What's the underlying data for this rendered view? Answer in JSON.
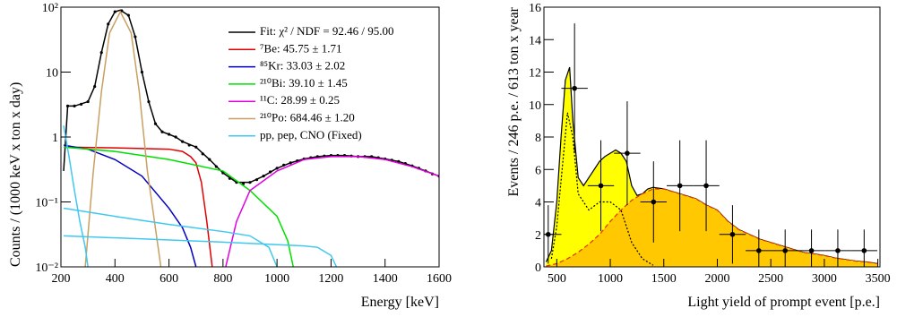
{
  "chart_data": [
    {
      "type": "line",
      "xlabel": "Energy [keV]",
      "ylabel": "Counts / (1000 keV x ton x day)",
      "xlim": [
        200,
        1600
      ],
      "ylim": [
        0.01,
        100
      ],
      "log_y": true,
      "xticks": [
        200,
        400,
        600,
        800,
        1000,
        1200,
        1400,
        1600
      ],
      "yticks": [
        {
          "value": 0.01,
          "label": "10⁻²"
        },
        {
          "value": 0.1,
          "label": "10⁻¹"
        },
        1,
        10,
        {
          "value": 100,
          "label": "10²"
        }
      ],
      "series": [
        {
          "name": "Fit: χ² / NDF = 92.46 / 95.00",
          "color": "#000000",
          "x": [
            210,
            225,
            250,
            300,
            325,
            350,
            375,
            400,
            420,
            450,
            475,
            500,
            525,
            550,
            575,
            600,
            625,
            650,
            700,
            750,
            800,
            850,
            900,
            950,
            1000,
            1050,
            1100,
            1150,
            1200,
            1250,
            1300,
            1350,
            1400,
            1450,
            1500,
            1550,
            1600
          ],
          "values": [
            0.3,
            3,
            3.0,
            3.5,
            6,
            20,
            55,
            85,
            90,
            75,
            35,
            10,
            3.5,
            1.6,
            1.2,
            1.1,
            1.0,
            0.85,
            0.7,
            0.45,
            0.28,
            0.2,
            0.2,
            0.25,
            0.33,
            0.4,
            0.46,
            0.5,
            0.52,
            0.52,
            0.5,
            0.5,
            0.46,
            0.42,
            0.36,
            0.3,
            0.25
          ]
        },
        {
          "name": "⁷Be: 45.75 ± 1.71",
          "color": "#e00000",
          "x": [
            210,
            400,
            600,
            650,
            680,
            700,
            720,
            740,
            760
          ],
          "values": [
            0.7,
            0.68,
            0.65,
            0.6,
            0.5,
            0.4,
            0.2,
            0.05,
            0.01
          ]
        },
        {
          "name": "⁸⁵Kr: 33.03 ± 2.02",
          "color": "#0000c0",
          "x": [
            210,
            300,
            400,
            500,
            600,
            650,
            680,
            700
          ],
          "values": [
            0.75,
            0.65,
            0.45,
            0.25,
            0.08,
            0.04,
            0.02,
            0.01
          ]
        },
        {
          "name": "²¹⁰Bi: 39.10 ± 1.45",
          "color": "#00e000",
          "x": [
            210,
            400,
            600,
            800,
            900,
            1000,
            1040,
            1060
          ],
          "values": [
            0.7,
            0.6,
            0.45,
            0.3,
            0.15,
            0.06,
            0.025,
            0.01
          ]
        },
        {
          "name": "¹¹C: 28.99 ± 0.25",
          "color": "#e000e0",
          "x": [
            810,
            850,
            900,
            1000,
            1100,
            1200,
            1300,
            1400,
            1500,
            1600
          ],
          "values": [
            0.01,
            0.05,
            0.15,
            0.3,
            0.45,
            0.5,
            0.5,
            0.45,
            0.35,
            0.25
          ]
        },
        {
          "name": "²¹⁰Po: 684.46 ± 1.20",
          "color": "#c8a060",
          "x": [
            290,
            320,
            350,
            380,
            420,
            460,
            490,
            520,
            570
          ],
          "values": [
            0.01,
            0.3,
            5,
            40,
            85,
            40,
            5,
            0.3,
            0.01
          ]
        },
        {
          "name": "pp, pep, CNO (Fixed)",
          "color": "#40c8f0",
          "x": [
            210,
            230,
            250,
            270,
            290,
            300,
            null,
            210,
            400,
            600,
            800,
            900,
            970,
            1000,
            null,
            210,
            500,
            800,
            1100,
            1150,
            1200,
            1220
          ],
          "values": [
            1.5,
            0.5,
            0.15,
            0.05,
            0.02,
            0.01,
            null,
            0.08,
            0.06,
            0.045,
            0.035,
            0.03,
            0.02,
            0.01,
            null,
            0.03,
            0.027,
            0.024,
            0.021,
            0.02,
            0.015,
            0.01
          ]
        }
      ],
      "points": {
        "color": "#000000",
        "x": [
          225,
          250,
          275,
          300,
          325,
          350,
          375,
          400,
          425,
          450,
          475,
          500,
          525,
          550,
          575,
          600,
          625,
          650,
          675,
          700,
          725,
          750,
          775,
          800,
          825,
          850,
          875,
          900,
          925,
          950,
          975,
          1000,
          1025,
          1050,
          1075,
          1100,
          1125,
          1150,
          1175,
          1200,
          1225,
          1250,
          1275,
          1300,
          1325,
          1350,
          1375,
          1400,
          1425,
          1450,
          1475,
          1500,
          1525,
          1550,
          1575,
          1600
        ],
        "values": [
          3,
          3,
          3.2,
          3.5,
          6,
          20,
          55,
          85,
          88,
          75,
          35,
          10,
          3.5,
          1.6,
          1.2,
          1.1,
          1.0,
          0.85,
          0.75,
          0.7,
          0.55,
          0.45,
          0.35,
          0.28,
          0.23,
          0.2,
          0.19,
          0.2,
          0.22,
          0.25,
          0.29,
          0.33,
          0.37,
          0.4,
          0.43,
          0.46,
          0.48,
          0.5,
          0.51,
          0.52,
          0.52,
          0.52,
          0.51,
          0.5,
          0.5,
          0.5,
          0.48,
          0.46,
          0.44,
          0.42,
          0.39,
          0.36,
          0.33,
          0.3,
          0.27,
          0.25
        ]
      }
    },
    {
      "type": "histogram",
      "xlabel": "Light yield of prompt event [p.e.]",
      "ylabel": "Events / 246 p.e. / 613 ton x year",
      "xlim": [
        380,
        3520
      ],
      "ylim": [
        0,
        16
      ],
      "xticks": [
        500,
        1000,
        1500,
        2000,
        2500,
        3000,
        3500
      ],
      "yticks": [
        0,
        2,
        4,
        6,
        8,
        10,
        12,
        14,
        16
      ],
      "series": [
        {
          "color": "#ffff00",
          "line_color": "#000000",
          "dash": "solid",
          "x": [
            400,
            450,
            500,
            540,
            580,
            620,
            650,
            700,
            750,
            800,
            850,
            900,
            950,
            1000,
            1050,
            1100,
            1150,
            1200,
            1250,
            1300,
            1350,
            1400,
            1500,
            1600,
            1700,
            1800,
            1900,
            2000,
            2100,
            2200,
            2300,
            2400,
            2500,
            2600,
            2700,
            2800,
            2900,
            3000,
            3100,
            3200,
            3300,
            3400,
            3500
          ],
          "values": [
            0.3,
            1,
            4,
            8,
            11.5,
            12.3,
            9,
            5.5,
            5,
            5.5,
            6,
            6.5,
            6.8,
            7,
            7.2,
            7,
            6.5,
            5,
            4.4,
            4.5,
            4.8,
            4.9,
            4.8,
            4.6,
            4.4,
            4.2,
            3.8,
            3.5,
            2.8,
            2.3,
            2,
            1.7,
            1.5,
            1.3,
            1.1,
            0.9,
            0.8,
            0.7,
            0.55,
            0.45,
            0.35,
            0.3,
            0.2
          ]
        },
        {
          "color": "#ffc800",
          "line_color": "#e03000",
          "dash": "dashed",
          "x": [
            400,
            500,
            600,
            700,
            800,
            900,
            1000,
            1100,
            1200,
            1300,
            1400,
            1500,
            1600,
            1700,
            1800,
            1900,
            2000,
            2100,
            2200,
            2300,
            2400,
            2500,
            2600,
            2700,
            2800,
            2900,
            3000,
            3100,
            3200,
            3300,
            3400,
            3500
          ],
          "values": [
            0.05,
            0.2,
            0.5,
            0.9,
            1.4,
            2,
            2.8,
            3.5,
            4.1,
            4.5,
            4.8,
            4.8,
            4.6,
            4.4,
            4.2,
            3.8,
            3.5,
            2.8,
            2.3,
            2,
            1.7,
            1.5,
            1.3,
            1.1,
            0.9,
            0.8,
            0.7,
            0.55,
            0.45,
            0.35,
            0.3,
            0.2
          ]
        },
        {
          "color": "none",
          "line_color": "#000000",
          "dash": "dotted",
          "x": [
            450,
            500,
            550,
            600,
            650,
            700,
            800,
            900,
            1000,
            1100,
            1200,
            1300,
            1400
          ],
          "values": [
            0.5,
            2.5,
            6,
            9.5,
            8,
            4.5,
            3.5,
            4,
            4,
            3.5,
            1.5,
            0.5,
            0.1
          ]
        }
      ],
      "points": {
        "color": "#000000",
        "xerr": 123,
        "x": [
          420,
          666,
          912,
          1158,
          1404,
          1650,
          1896,
          2142,
          2388,
          2634,
          2880,
          3126,
          3372
        ],
        "values": [
          2,
          11,
          5,
          7,
          4,
          5,
          5,
          2,
          1,
          1,
          1,
          1,
          1
        ],
        "errors": [
          1.8,
          4,
          2.8,
          3.2,
          2.5,
          2.8,
          2.8,
          1.8,
          1.3,
          1.3,
          1.3,
          1.3,
          1.3
        ]
      }
    }
  ]
}
